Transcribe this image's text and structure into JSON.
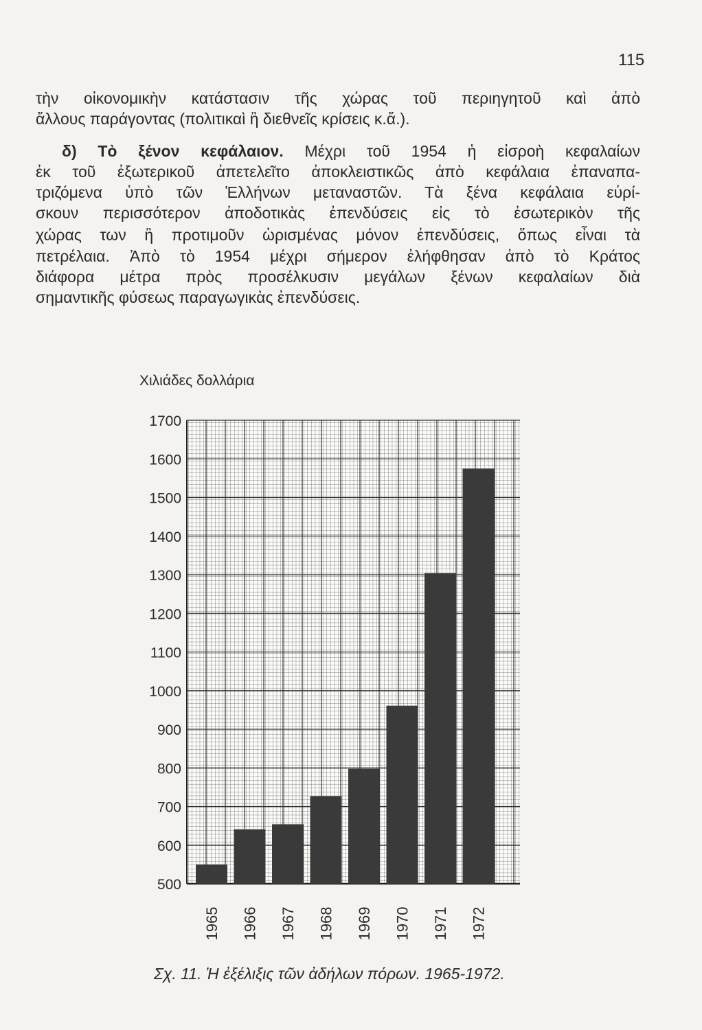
{
  "page_number": "115",
  "text": {
    "lines": [
      "τὴν οἰκονομικὴν κατάστασιν τῆς χώρας τοῦ περιηγητοῦ καὶ ἀπὸ",
      "ἄλλους παράγοντας (πολιτικαὶ ἢ διεθνεῖς κρίσεις κ.ἄ.).",
      "Μέχρι τοῦ 1954 ἡ εἰσροὴ κεφαλαίων",
      "ἐκ τοῦ ἐξωτερικοῦ ἀπετελεῖτο ἀποκλειστικῶς ἀπὸ κεφάλαια ἐπαναπα-",
      "τριζόμενα ὑπὸ τῶν Ἑλλήνων μεταναστῶν. Τὰ ξένα κεφάλαια εὑρί-",
      "σκουν περισσότερον ἀποδοτικὰς ἐπενδύσεις εἰς τὸ ἐσωτερικὸν τῆς",
      "χώρας των ἢ προτιμοῦν ὡρισμένας μόνον ἐπενδύσεις, ὅπως εἶναι τὰ",
      "πετρέλαια. Ἀπὸ τὸ 1954 μέχρι σήμερον ἐλήφθησαν ἀπὸ τὸ Κράτος",
      "διάφορα μέτρα πρὸς προσέλκυσιν μεγάλων ξένων κεφαλαίων διὰ",
      "σημαντικῆς φύσεως παραγωγικὰς ἐπενδύσεις."
    ],
    "section_heading": "δ) Τὸ ξένον κεφάλαιον."
  },
  "chart_data": {
    "type": "bar",
    "ylabel": "Χιλιάδες δολλάρια",
    "categories": [
      "1965",
      "1966",
      "1967",
      "1968",
      "1969",
      "1970",
      "1971",
      "1972"
    ],
    "values": [
      550,
      641,
      654,
      727,
      798,
      961,
      1304,
      1575
    ],
    "ylim": [
      500,
      1700
    ],
    "yticks": [
      "500",
      "600",
      "700",
      "800",
      "900",
      "1000",
      "1100",
      "1200",
      "1300",
      "1400",
      "1500",
      "1600",
      "1700"
    ],
    "grid": true,
    "bar_color": "#3a3a3a",
    "caption": "Σχ. 11. Ἡ ἐξέλιξις τῶν ἀδήλων πόρων. 1965-1972."
  }
}
